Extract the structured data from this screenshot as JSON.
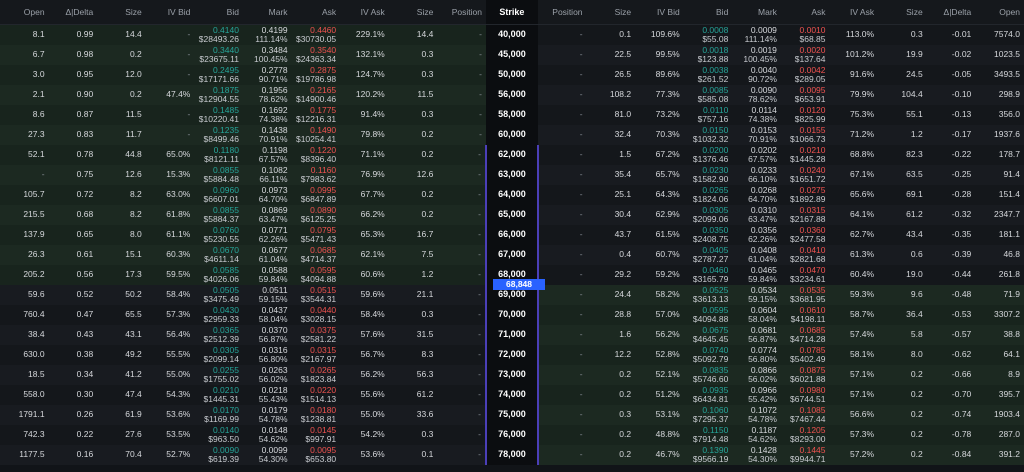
{
  "header": {
    "columns": [
      "Open",
      "Δ|Delta",
      "Size",
      "IV Bid",
      "Bid",
      "Mark",
      "Ask",
      "IV Ask",
      "Size",
      "Position",
      "Strike",
      "Position",
      "Size",
      "IV Bid",
      "Bid",
      "Mark",
      "Ask",
      "IV Ask",
      "Size",
      "Δ|Delta",
      "Open"
    ]
  },
  "price_marker": "68,848",
  "rows": [
    [
      "8.1",
      "0.99",
      "14.4",
      "-",
      [
        "0.4140",
        "$28493.26"
      ],
      [
        "0.4199",
        "111.14%"
      ],
      [
        "0.4460",
        "$30730.05"
      ],
      "229.1%",
      "14.4",
      "-",
      "40,000",
      "-",
      "0.1",
      "109.6%",
      [
        "0.0008",
        "$55.08"
      ],
      [
        "0.0009",
        "111.14%"
      ],
      [
        "0.0010",
        "$68.85"
      ],
      "113.0%",
      "0.3",
      "-0.01",
      "7574.0"
    ],
    [
      "6.7",
      "0.98",
      "0.2",
      "-",
      [
        "0.3440",
        "$23675.11"
      ],
      [
        "0.3484",
        "100.45%"
      ],
      [
        "0.3540",
        "$24363.34"
      ],
      "132.1%",
      "0.3",
      "-",
      "45,000",
      "-",
      "22.5",
      "99.5%",
      [
        "0.0018",
        "$123.88"
      ],
      [
        "0.0019",
        "100.45%"
      ],
      [
        "0.0020",
        "$137.64"
      ],
      "101.2%",
      "19.9",
      "-0.02",
      "1023.5"
    ],
    [
      "3.0",
      "0.95",
      "12.0",
      "-",
      [
        "0.2495",
        "$17171.66"
      ],
      [
        "0.2778",
        "90.71%"
      ],
      [
        "0.2875",
        "$19786.98"
      ],
      "124.7%",
      "0.3",
      "-",
      "50,000",
      "-",
      "26.5",
      "89.6%",
      [
        "0.0038",
        "$261.52"
      ],
      [
        "0.0040",
        "90.72%"
      ],
      [
        "0.0042",
        "$289.05"
      ],
      "91.6%",
      "24.5",
      "-0.05",
      "3493.5"
    ],
    [
      "2.1",
      "0.90",
      "0.2",
      "47.4%",
      [
        "0.1875",
        "$12904.55"
      ],
      [
        "0.1956",
        "78.62%"
      ],
      [
        "0.2165",
        "$14900.46"
      ],
      "120.2%",
      "11.5",
      "-",
      "56,000",
      "-",
      "108.2",
      "77.3%",
      [
        "0.0085",
        "$585.08"
      ],
      [
        "0.0090",
        "78.62%"
      ],
      [
        "0.0095",
        "$653.91"
      ],
      "79.9%",
      "104.4",
      "-0.10",
      "298.9"
    ],
    [
      "8.6",
      "0.87",
      "11.5",
      "-",
      [
        "0.1485",
        "$10220.41"
      ],
      [
        "0.1692",
        "74.38%"
      ],
      [
        "0.1775",
        "$12216.31"
      ],
      "91.4%",
      "0.3",
      "-",
      "58,000",
      "-",
      "81.0",
      "73.2%",
      [
        "0.0110",
        "$757.16"
      ],
      [
        "0.0114",
        "74.38%"
      ],
      [
        "0.0120",
        "$825.99"
      ],
      "75.3%",
      "55.1",
      "-0.13",
      "356.0"
    ],
    [
      "27.3",
      "0.83",
      "11.7",
      "-",
      [
        "0.1235",
        "$8499.46"
      ],
      [
        "0.1438",
        "70.91%"
      ],
      [
        "0.1490",
        "$10254.41"
      ],
      "79.8%",
      "0.2",
      "-",
      "60,000",
      "-",
      "32.4",
      "70.3%",
      [
        "0.0150",
        "$1032.32"
      ],
      [
        "0.0153",
        "70.91%"
      ],
      [
        "0.0155",
        "$1066.73"
      ],
      "71.2%",
      "1.2",
      "-0.17",
      "1937.6"
    ],
    [
      "52.1",
      "0.78",
      "44.8",
      "65.0%",
      [
        "0.1180",
        "$8121.11"
      ],
      [
        "0.1198",
        "67.57%"
      ],
      [
        "0.1220",
        "$8396.40"
      ],
      "71.1%",
      "0.2",
      "-",
      "62,000",
      "-",
      "1.5",
      "67.2%",
      [
        "0.0200",
        "$1376.46"
      ],
      [
        "0.0202",
        "67.57%"
      ],
      [
        "0.0210",
        "$1445.28"
      ],
      "68.8%",
      "82.3",
      "-0.22",
      "178.7"
    ],
    [
      "-",
      "0.75",
      "12.6",
      "15.3%",
      [
        "0.0855",
        "$5884.48"
      ],
      [
        "0.1082",
        "66.11%"
      ],
      [
        "0.1160",
        "$7983.62"
      ],
      "76.9%",
      "12.6",
      "-",
      "63,000",
      "-",
      "35.4",
      "65.7%",
      [
        "0.0230",
        "$1582.90"
      ],
      [
        "0.0233",
        "66.10%"
      ],
      [
        "0.0240",
        "$1651.72"
      ],
      "67.1%",
      "63.5",
      "-0.25",
      "91.4"
    ],
    [
      "105.7",
      "0.72",
      "8.2",
      "63.0%",
      [
        "0.0960",
        "$6607.01"
      ],
      [
        "0.0973",
        "64.70%"
      ],
      [
        "0.0995",
        "$6847.89"
      ],
      "67.7%",
      "0.2",
      "-",
      "64,000",
      "-",
      "25.1",
      "64.3%",
      [
        "0.0265",
        "$1824.06"
      ],
      [
        "0.0268",
        "64.70%"
      ],
      [
        "0.0275",
        "$1892.89"
      ],
      "65.6%",
      "69.1",
      "-0.28",
      "151.4"
    ],
    [
      "215.5",
      "0.68",
      "8.2",
      "61.8%",
      [
        "0.0855",
        "$5884.37"
      ],
      [
        "0.0869",
        "63.47%"
      ],
      [
        "0.0890",
        "$6125.25"
      ],
      "66.2%",
      "0.2",
      "-",
      "65,000",
      "-",
      "30.4",
      "62.9%",
      [
        "0.0305",
        "$2099.06"
      ],
      [
        "0.0310",
        "63.47%"
      ],
      [
        "0.0315",
        "$2167.88"
      ],
      "64.1%",
      "61.2",
      "-0.32",
      "2347.7"
    ],
    [
      "137.9",
      "0.65",
      "8.0",
      "61.1%",
      [
        "0.0760",
        "$5230.55"
      ],
      [
        "0.0771",
        "62.26%"
      ],
      [
        "0.0795",
        "$5471.43"
      ],
      "65.3%",
      "16.7",
      "-",
      "66,000",
      "-",
      "43.7",
      "61.5%",
      [
        "0.0350",
        "$2408.75"
      ],
      [
        "0.0356",
        "62.26%"
      ],
      [
        "0.0360",
        "$2477.58"
      ],
      "62.7%",
      "43.4",
      "-0.35",
      "181.1"
    ],
    [
      "26.3",
      "0.61",
      "15.1",
      "60.3%",
      [
        "0.0670",
        "$4611.14"
      ],
      [
        "0.0677",
        "61.04%"
      ],
      [
        "0.0685",
        "$4714.37"
      ],
      "62.1%",
      "7.5",
      "-",
      "67,000",
      "-",
      "0.4",
      "60.7%",
      [
        "0.0405",
        "$2787.27"
      ],
      [
        "0.0408",
        "61.04%"
      ],
      [
        "0.0410",
        "$2821.68"
      ],
      "61.3%",
      "0.6",
      "-0.39",
      "46.8"
    ],
    [
      "205.2",
      "0.56",
      "17.3",
      "59.5%",
      [
        "0.0585",
        "$4026.06"
      ],
      [
        "0.0588",
        "59.84%"
      ],
      [
        "0.0595",
        "$4094.88"
      ],
      "60.6%",
      "1.2",
      "-",
      "68,000",
      "-",
      "29.2",
      "59.2%",
      [
        "0.0460",
        "$3165.79"
      ],
      [
        "0.0465",
        "59.84%"
      ],
      [
        "0.0470",
        "$3234.61"
      ],
      "60.4%",
      "19.0",
      "-0.44",
      "261.8"
    ],
    [
      "59.6",
      "0.52",
      "50.2",
      "58.4%",
      [
        "0.0505",
        "$3475.49"
      ],
      [
        "0.0511",
        "59.15%"
      ],
      [
        "0.0515",
        "$3544.31"
      ],
      "59.6%",
      "21.1",
      "-",
      "69,000",
      "-",
      "24.4",
      "58.2%",
      [
        "0.0525",
        "$3613.13"
      ],
      [
        "0.0534",
        "59.15%"
      ],
      [
        "0.0535",
        "$3681.95"
      ],
      "59.3%",
      "9.6",
      "-0.48",
      "71.9"
    ],
    [
      "760.4",
      "0.47",
      "65.5",
      "57.3%",
      [
        "0.0430",
        "$2959.33"
      ],
      [
        "0.0437",
        "58.04%"
      ],
      [
        "0.0440",
        "$3028.15"
      ],
      "58.4%",
      "0.3",
      "-",
      "70,000",
      "-",
      "28.8",
      "57.0%",
      [
        "0.0595",
        "$4094.88"
      ],
      [
        "0.0604",
        "58.04%"
      ],
      [
        "0.0610",
        "$4198.11"
      ],
      "58.7%",
      "36.4",
      "-0.53",
      "3307.2"
    ],
    [
      "38.4",
      "0.43",
      "43.1",
      "56.4%",
      [
        "0.0365",
        "$2512.39"
      ],
      [
        "0.0370",
        "56.87%"
      ],
      [
        "0.0375",
        "$2581.22"
      ],
      "57.6%",
      "31.5",
      "-",
      "71,000",
      "-",
      "1.6",
      "56.2%",
      [
        "0.0675",
        "$4645.45"
      ],
      [
        "0.0681",
        "56.87%"
      ],
      [
        "0.0685",
        "$4714.28"
      ],
      "57.4%",
      "5.8",
      "-0.57",
      "38.8"
    ],
    [
      "630.0",
      "0.38",
      "49.2",
      "55.5%",
      [
        "0.0305",
        "$2099.14"
      ],
      [
        "0.0316",
        "56.80%"
      ],
      [
        "0.0315",
        "$2167.97"
      ],
      "56.7%",
      "8.3",
      "-",
      "72,000",
      "-",
      "12.2",
      "52.8%",
      [
        "0.0740",
        "$5092.79"
      ],
      [
        "0.0774",
        "56.80%"
      ],
      [
        "0.0785",
        "$5402.49"
      ],
      "58.1%",
      "8.0",
      "-0.62",
      "64.1"
    ],
    [
      "18.5",
      "0.34",
      "41.2",
      "55.0%",
      [
        "0.0255",
        "$1755.02"
      ],
      [
        "0.0263",
        "56.02%"
      ],
      [
        "0.0265",
        "$1823.84"
      ],
      "56.2%",
      "56.3",
      "-",
      "73,000",
      "-",
      "0.2",
      "52.1%",
      [
        "0.0835",
        "$5746.60"
      ],
      [
        "0.0866",
        "56.02%"
      ],
      [
        "0.0875",
        "$6021.88"
      ],
      "57.1%",
      "0.2",
      "-0.66",
      "8.9"
    ],
    [
      "558.0",
      "0.30",
      "47.4",
      "54.3%",
      [
        "0.0210",
        "$1445.31"
      ],
      [
        "0.0218",
        "55.43%"
      ],
      [
        "0.0220",
        "$1514.13"
      ],
      "55.6%",
      "61.2",
      "-",
      "74,000",
      "-",
      "0.2",
      "51.2%",
      [
        "0.0935",
        "$6434.81"
      ],
      [
        "0.0966",
        "55.42%"
      ],
      [
        "0.0980",
        "$6744.51"
      ],
      "57.1%",
      "0.2",
      "-0.70",
      "395.7"
    ],
    [
      "1791.1",
      "0.26",
      "61.9",
      "53.6%",
      [
        "0.0170",
        "$1169.99"
      ],
      [
        "0.0179",
        "54.78%"
      ],
      [
        "0.0180",
        "$1238.81"
      ],
      "55.0%",
      "33.6",
      "-",
      "75,000",
      "-",
      "0.3",
      "53.1%",
      [
        "0.1060",
        "$7295.37"
      ],
      [
        "0.1072",
        "54.78%"
      ],
      [
        "0.1085",
        "$7467.44"
      ],
      "56.6%",
      "0.2",
      "-0.74",
      "1903.4"
    ],
    [
      "742.3",
      "0.22",
      "27.6",
      "53.5%",
      [
        "0.0140",
        "$963.50"
      ],
      [
        "0.0148",
        "54.62%"
      ],
      [
        "0.0145",
        "$997.91"
      ],
      "54.2%",
      "0.3",
      "-",
      "76,000",
      "-",
      "0.2",
      "48.8%",
      [
        "0.1150",
        "$7914.48"
      ],
      [
        "0.1187",
        "54.62%"
      ],
      [
        "0.1205",
        "$8293.00"
      ],
      "57.3%",
      "0.2",
      "-0.78",
      "287.0"
    ],
    [
      "1177.5",
      "0.16",
      "70.4",
      "52.7%",
      [
        "0.0090",
        "$619.39"
      ],
      [
        "0.0099",
        "54.30%"
      ],
      [
        "0.0095",
        "$653.80"
      ],
      "53.6%",
      "0.1",
      "-",
      "78,000",
      "-",
      "0.2",
      "46.7%",
      [
        "0.1390",
        "$9566.19"
      ],
      [
        "0.1428",
        "54.30%"
      ],
      [
        "0.1445",
        "$9944.71"
      ],
      "57.2%",
      "0.2",
      "-0.84",
      "391.2"
    ]
  ]
}
